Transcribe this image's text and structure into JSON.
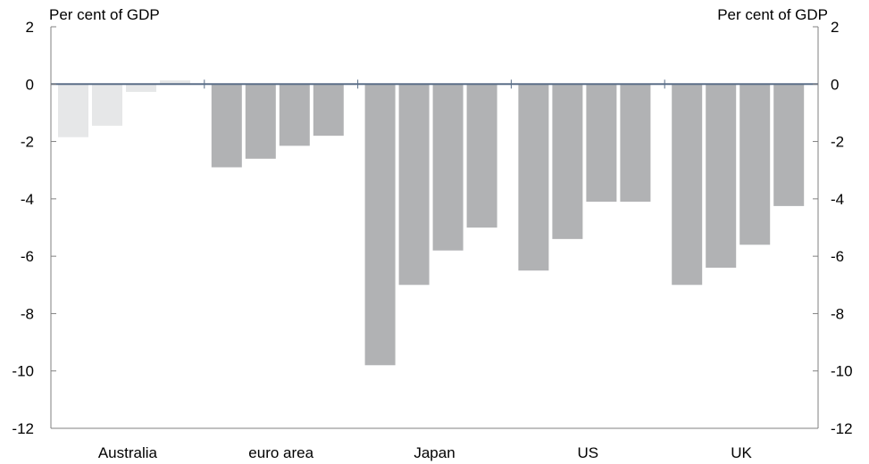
{
  "chart_data": {
    "type": "bar",
    "unit_left": "Per cent of GDP",
    "unit_right": "Per cent of GDP",
    "categories": [
      "Australia",
      "euro area",
      "Japan",
      "US",
      "UK"
    ],
    "values": [
      [
        -1.85,
        -1.45,
        -0.27,
        0.13
      ],
      [
        -2.9,
        -2.6,
        -2.15,
        -1.8
      ],
      [
        -9.8,
        -7.0,
        -5.8,
        -5.0
      ],
      [
        -6.5,
        -5.4,
        -4.1,
        -4.1
      ],
      [
        -7.0,
        -6.4,
        -5.6,
        -4.25
      ]
    ],
    "bar_colors": [
      [
        "#e6e7e8",
        "#e6e7e8",
        "#e6e7e8",
        "#e6e7e8"
      ],
      [
        "#b1b2b4",
        "#b1b2b4",
        "#b1b2b4",
        "#b1b2b4"
      ],
      [
        "#b1b2b4",
        "#b1b2b4",
        "#b1b2b4",
        "#b1b2b4"
      ],
      [
        "#b1b2b4",
        "#b1b2b4",
        "#b1b2b4",
        "#b1b2b4"
      ],
      [
        "#b1b2b4",
        "#b1b2b4",
        "#b1b2b4",
        "#b1b2b4"
      ]
    ],
    "zero_line_color": "#5b6f88",
    "ylim": [
      -12,
      2
    ],
    "yticks": [
      "2",
      "0",
      "-2",
      "-4",
      "-6",
      "-8",
      "-10",
      "-12"
    ],
    "grid": false,
    "legend": "none"
  }
}
